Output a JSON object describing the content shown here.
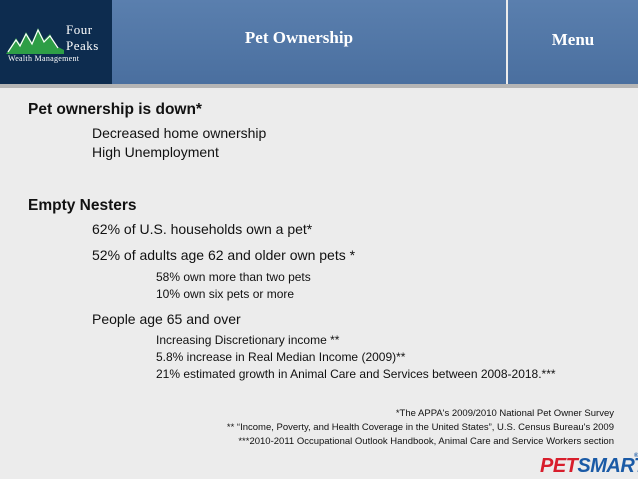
{
  "header": {
    "title": "Pet Ownership",
    "menu_label": "Menu",
    "logo": {
      "line1": "Four",
      "line2": "Peaks",
      "line3": "Wealth Management"
    }
  },
  "content": {
    "section1": {
      "heading": "Pet ownership is down*",
      "items": [
        "Decreased home ownership",
        "High Unemployment"
      ]
    },
    "section2": {
      "heading": "Empty Nesters",
      "item1": "62% of U.S. households own a pet*",
      "item2": "52% of adults age 62 and older own pets *",
      "item2_sub": [
        "58% own more than two pets",
        "10% own six pets or more"
      ],
      "item3": "People age 65 and over",
      "item3_sub": [
        "Increasing Discretionary income **",
        "5.8% increase in Real Median Income (2009)**",
        "21% estimated growth in Animal Care and Services between 2008-2018.***"
      ]
    }
  },
  "footnotes": [
    "*The APPA's 2009/2010 National Pet Owner Survey",
    "** “Income, Poverty, and Health Coverage in the United States”, U.S. Census Bureau's 2009",
    "***2010-2011 Occupational Outlook Handbook, Animal Care and Service Workers section"
  ],
  "brand": {
    "pet": "PET",
    "smart": "SMART",
    "tm": "®"
  },
  "colors": {
    "header_blue": "#4f75a6",
    "logo_navy": "#0d2c4f",
    "logo_green": "#2e9e46",
    "petsmart_red": "#d81e2c",
    "petsmart_blue": "#1a5aa6"
  }
}
